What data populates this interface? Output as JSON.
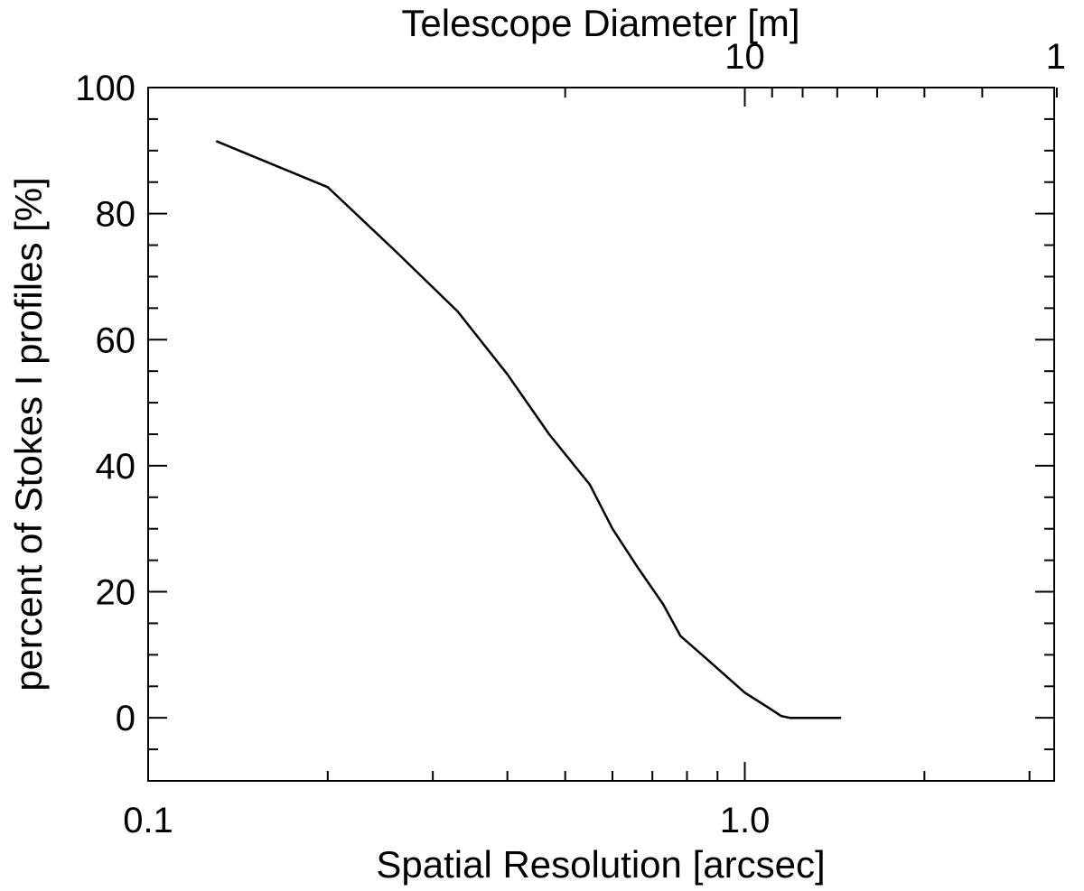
{
  "chart_data": {
    "type": "line",
    "xlabel": "Spatial Resolution [arcsec]",
    "ylabel": "percent of Stokes I profiles [%]",
    "top_xlabel": "Telescope Diameter [m]",
    "x_scale": "log",
    "xlim": [
      0.1,
      3.3
    ],
    "ylim": [
      -10,
      100
    ],
    "x_tick_labels": [
      {
        "value": 0.1,
        "label": "0.1"
      },
      {
        "value": 1.0,
        "label": "1.0"
      }
    ],
    "y_tick_labels": [
      {
        "value": 0,
        "label": "0"
      },
      {
        "value": 20,
        "label": "20"
      },
      {
        "value": 40,
        "label": "40"
      },
      {
        "value": 60,
        "label": "60"
      },
      {
        "value": 80,
        "label": "80"
      },
      {
        "value": 100,
        "label": "100"
      }
    ],
    "top_axis": {
      "scale": "reciprocal",
      "tick_labels": [
        {
          "value": 10,
          "label": "10"
        },
        {
          "value": 1,
          "label": "1"
        }
      ]
    },
    "series": [
      {
        "values": [
          [
            0.13,
            91.5
          ],
          [
            0.2,
            84.2
          ],
          [
            0.26,
            74.0
          ],
          [
            0.33,
            64.5
          ],
          [
            0.4,
            54.5
          ],
          [
            0.47,
            45.0
          ],
          [
            0.55,
            37.0
          ],
          [
            0.6,
            30.0
          ],
          [
            0.66,
            24.0
          ],
          [
            0.73,
            18.0
          ],
          [
            0.78,
            13.0
          ],
          [
            0.86,
            9.5
          ],
          [
            1.0,
            4.0
          ],
          [
            1.1,
            1.5
          ],
          [
            1.15,
            0.3
          ],
          [
            1.19,
            0.0
          ],
          [
            1.45,
            0.0
          ]
        ]
      }
    ],
    "grid": false,
    "line_color": "#000000"
  }
}
